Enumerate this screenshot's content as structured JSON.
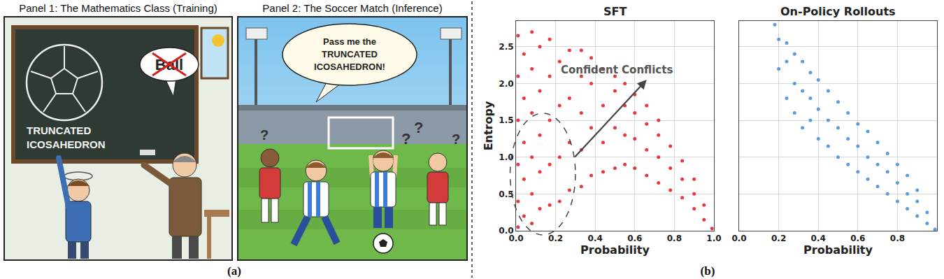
{
  "panel_a": {
    "label": "(a)",
    "panel1": {
      "title": "Panel 1: The Mathematics Class (Training)",
      "board_text": [
        "TRUNCATED",
        "ICOSAHEDRON"
      ],
      "speech": "Ball"
    },
    "panel2": {
      "title": "Panel 2: The Soccer Match (Inference)",
      "speech": [
        "Pass me the",
        "TRUNCATED",
        "ICOSAHEDRON!"
      ],
      "confusion": "?"
    }
  },
  "panel_b": {
    "label": "(b)"
  },
  "chart_data": [
    {
      "type": "scatter",
      "title": "SFT",
      "x_label": "Probability",
      "y_label": "Entropy",
      "color": "#e8383d",
      "marker": "circle",
      "grid": true,
      "annotations": [
        {
          "text": "Confident Conflicts"
        }
      ],
      "xlim": [
        0,
        1.0
      ],
      "xticks": [
        {
          "value": 0,
          "label": "0.0"
        },
        {
          "value": 0.2,
          "label": "0.2"
        },
        {
          "value": 0.4,
          "label": "0.4"
        },
        {
          "value": 0.6,
          "label": "0.6"
        },
        {
          "value": 0.8,
          "label": "0.8"
        },
        {
          "value": 1.0,
          "label": "1.0"
        }
      ],
      "ylim": [
        0,
        2.85
      ],
      "yticks": [
        {
          "value": 0,
          "label": "0.0"
        },
        {
          "value": 0.5,
          "label": "0.5"
        },
        {
          "value": 1.0,
          "label": "1.0"
        },
        {
          "value": 1.5,
          "label": "1.5"
        },
        {
          "value": 2.0,
          "label": "2.0"
        },
        {
          "value": 2.5,
          "label": "2.5"
        }
      ],
      "x": [
        0.01,
        0.01,
        0.01,
        0.01,
        0.01,
        0.01,
        0.04,
        0.04,
        0.04,
        0.04,
        0.04,
        0.08,
        0.08,
        0.08,
        0.08,
        0.08,
        0.08,
        0.12,
        0.12,
        0.12,
        0.12,
        0.12,
        0.17,
        0.17,
        0.17,
        0.17,
        0.17,
        0.22,
        0.22,
        0.22,
        0.22,
        0.27,
        0.27,
        0.27,
        0.27,
        0.33,
        0.33,
        0.33,
        0.33,
        0.33,
        0.38,
        0.38,
        0.38,
        0.38,
        0.44,
        0.44,
        0.44,
        0.44,
        0.5,
        0.5,
        0.5,
        0.5,
        0.55,
        0.55,
        0.55,
        0.55,
        0.6,
        0.6,
        0.6,
        0.6,
        0.66,
        0.66,
        0.66,
        0.66,
        0.72,
        0.72,
        0.72,
        0.72,
        0.78,
        0.78,
        0.78,
        0.84,
        0.84,
        0.84,
        0.9,
        0.9,
        0.9,
        0.95,
        0.95,
        0.99
      ],
      "values": [
        0.05,
        0.4,
        0.9,
        1.5,
        2.1,
        2.65,
        0.2,
        0.7,
        1.2,
        1.8,
        2.4,
        0.1,
        0.5,
        1.0,
        1.6,
        2.2,
        2.7,
        0.3,
        0.8,
        1.3,
        1.9,
        2.5,
        0.35,
        0.9,
        1.5,
        2.1,
        2.6,
        0.4,
        1.0,
        1.7,
        2.3,
        0.55,
        1.2,
        1.8,
        2.45,
        0.6,
        1.1,
        1.6,
        2.1,
        2.45,
        0.75,
        1.4,
        2.0,
        2.35,
        0.8,
        1.2,
        1.7,
        2.2,
        0.85,
        1.4,
        1.9,
        2.1,
        0.9,
        1.3,
        1.7,
        2.0,
        0.85,
        1.25,
        1.6,
        1.85,
        0.75,
        1.1,
        1.45,
        1.7,
        0.65,
        1.0,
        1.3,
        1.5,
        0.55,
        0.85,
        1.15,
        0.45,
        0.7,
        0.95,
        0.3,
        0.5,
        0.7,
        0.15,
        0.35,
        0.03
      ]
    },
    {
      "type": "scatter",
      "title": "On-Policy Rollouts",
      "x_label": "Probability",
      "color": "#5b9be0",
      "marker": "circle",
      "grid": true,
      "tick_labels": "x",
      "xlim": [
        0,
        1.0
      ],
      "xticks": [
        {
          "value": 0,
          "label": "0.0"
        },
        {
          "value": 0.2,
          "label": "0.2"
        },
        {
          "value": 0.4,
          "label": "0.4"
        },
        {
          "value": 0.6,
          "label": "0.6"
        },
        {
          "value": 0.8,
          "label": "0.8"
        },
        {
          "value": 1.0,
          "label": "1.0"
        }
      ],
      "ylim": [
        0,
        2.85
      ],
      "yticks": [
        {
          "value": 0,
          "label": "0.0"
        },
        {
          "value": 0.5,
          "label": "0.5"
        },
        {
          "value": 1.0,
          "label": "1.0"
        },
        {
          "value": 1.5,
          "label": "1.5"
        },
        {
          "value": 2.0,
          "label": "2.0"
        },
        {
          "value": 2.5,
          "label": "2.5"
        }
      ],
      "x": [
        0.18,
        0.2,
        0.2,
        0.24,
        0.24,
        0.24,
        0.28,
        0.28,
        0.28,
        0.32,
        0.32,
        0.32,
        0.36,
        0.36,
        0.36,
        0.4,
        0.4,
        0.4,
        0.45,
        0.45,
        0.45,
        0.5,
        0.5,
        0.5,
        0.55,
        0.55,
        0.55,
        0.6,
        0.6,
        0.6,
        0.65,
        0.65,
        0.65,
        0.7,
        0.7,
        0.7,
        0.75,
        0.75,
        0.75,
        0.8,
        0.8,
        0.8,
        0.85,
        0.85,
        0.85,
        0.9,
        0.9,
        0.9,
        0.95,
        0.95,
        0.99
      ],
      "values": [
        2.8,
        2.2,
        2.6,
        1.8,
        2.3,
        2.55,
        1.6,
        2.0,
        2.4,
        1.4,
        1.9,
        2.3,
        1.5,
        1.8,
        2.15,
        1.25,
        1.65,
        2.05,
        1.15,
        1.5,
        1.9,
        1.0,
        1.4,
        1.75,
        0.9,
        1.25,
        1.6,
        0.8,
        1.15,
        1.45,
        0.7,
        1.0,
        1.35,
        0.6,
        0.9,
        1.2,
        0.5,
        0.8,
        1.05,
        0.4,
        0.65,
        0.9,
        0.3,
        0.5,
        0.75,
        0.2,
        0.4,
        0.55,
        0.1,
        0.25,
        0.02
      ]
    }
  ]
}
